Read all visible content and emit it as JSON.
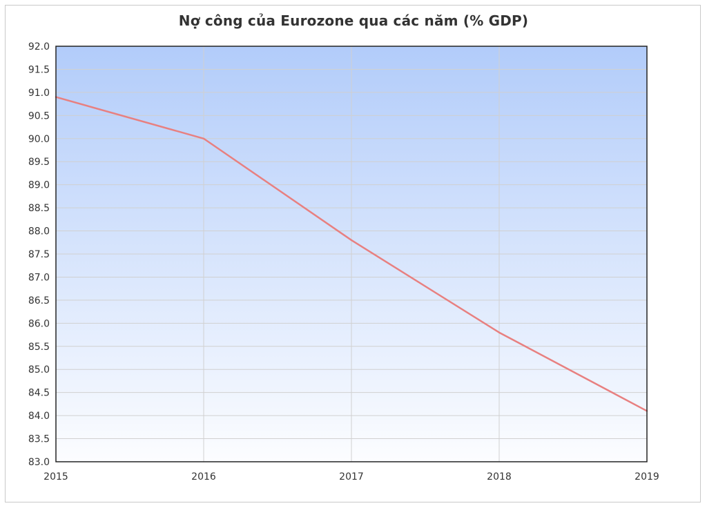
{
  "chart_data": {
    "type": "line",
    "title": "Nợ công của Eurozone qua các năm (% GDP)",
    "xlabel": "",
    "ylabel": "",
    "categories": [
      "2015",
      "2016",
      "2017",
      "2018",
      "2019"
    ],
    "series": [
      {
        "values": [
          90.9,
          90.0,
          87.8,
          85.8,
          84.1
        ],
        "color": "#e88080"
      }
    ],
    "ylim": [
      83.0,
      92.0
    ],
    "yticks": [
      "83.0",
      "83.5",
      "84.0",
      "84.5",
      "85.0",
      "85.5",
      "86.0",
      "86.5",
      "87.0",
      "87.5",
      "88.0",
      "88.5",
      "89.0",
      "89.5",
      "90.0",
      "90.5",
      "91.0",
      "91.5",
      "92.0"
    ],
    "grid": true,
    "legend": "none",
    "background_gradient": [
      "#b2ccfa",
      "#fcfdff"
    ],
    "grid_color": "#d0d0d0",
    "axis_color": "#222222"
  }
}
